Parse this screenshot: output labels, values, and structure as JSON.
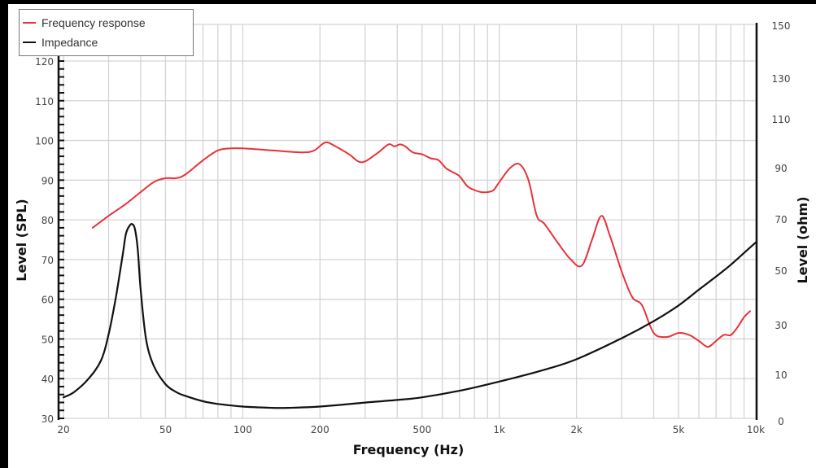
{
  "chart_data": {
    "type": "line",
    "title": "",
    "xlabel": "Frequency (Hz)",
    "ylabel": "Level (SPL)",
    "y2label": "Level (ohm)",
    "xscale": "log",
    "xlim": [
      20,
      10000
    ],
    "ylim": [
      30,
      120
    ],
    "y2lim": [
      0,
      150
    ],
    "grid": true,
    "legend_position": "top-left",
    "x_tick_labels": [
      "20",
      "50",
      "100",
      "200",
      "500",
      "1k",
      "2k",
      "5k",
      "10k"
    ],
    "x_tick_values": [
      20,
      50,
      100,
      200,
      500,
      1000,
      2000,
      5000,
      10000
    ],
    "y_tick_labels": [
      "30",
      "40",
      "50",
      "60",
      "70",
      "80",
      "90",
      "100",
      "110",
      "120"
    ],
    "y2_tick_labels": [
      "0",
      "10",
      "30",
      "50",
      "70",
      "90",
      "110",
      "130",
      "150"
    ],
    "series": [
      {
        "name": "Frequency response",
        "axis": "left",
        "color": "#e8323a",
        "x": [
          26,
          30,
          35,
          40,
          45,
          50,
          55,
          60,
          70,
          80,
          90,
          100,
          130,
          170,
          190,
          210,
          230,
          260,
          290,
          330,
          370,
          390,
          410,
          430,
          460,
          500,
          540,
          580,
          620,
          660,
          700,
          750,
          800,
          850,
          900,
          950,
          1000,
          1100,
          1200,
          1300,
          1400,
          1500,
          1700,
          1900,
          2100,
          2300,
          2500,
          2700,
          3000,
          3300,
          3600,
          4000,
          4500,
          5000,
          5500,
          6000,
          6500,
          7000,
          7500,
          8000,
          8500,
          9000,
          9500
        ],
        "values": [
          78,
          81,
          84,
          87,
          89.5,
          90.5,
          90.5,
          91.5,
          95,
          97.5,
          98,
          98,
          97.5,
          97,
          97.5,
          99.5,
          98.5,
          96.5,
          94.5,
          96.5,
          99,
          98.5,
          99,
          98.5,
          97,
          96.5,
          95.5,
          95,
          93,
          92,
          91,
          88.5,
          87.5,
          87,
          87,
          87.5,
          89.5,
          93,
          94,
          90,
          81,
          79,
          74,
          70,
          68.5,
          75,
          81,
          76,
          67,
          60.5,
          58.5,
          51.5,
          50.5,
          51.5,
          51,
          49.5,
          48,
          49.5,
          51,
          51,
          53,
          55.5,
          57
        ]
      },
      {
        "name": "Impedance",
        "axis": "right",
        "color": "#111111",
        "x": [
          20,
          22,
          25,
          28,
          30,
          32,
          34,
          35,
          36,
          37,
          38,
          39,
          40,
          42,
          45,
          50,
          55,
          60,
          70,
          80,
          100,
          130,
          150,
          200,
          300,
          400,
          500,
          700,
          1000,
          1500,
          2000,
          3000,
          4000,
          5000,
          6000,
          7000,
          8000,
          9000,
          10000
        ],
        "values": [
          8,
          10,
          15,
          22,
          32,
          46,
          62,
          70,
          73,
          74,
          72,
          64,
          49,
          30,
          20,
          13,
          10,
          8.5,
          6.5,
          5.5,
          4.5,
          4,
          4,
          4.5,
          6,
          7,
          8,
          10.5,
          14,
          18.5,
          22.5,
          30.5,
          37,
          43,
          49,
          54,
          58.5,
          63,
          67
        ]
      }
    ]
  },
  "legend": {
    "items": [
      {
        "label": "Frequency response",
        "color": "#e8323a"
      },
      {
        "label": "Impedance",
        "color": "#111111"
      }
    ]
  },
  "axes": {
    "x_title": "Frequency (Hz)",
    "y_left_title": "Level (SPL)",
    "y_right_title": "Level (ohm)"
  }
}
